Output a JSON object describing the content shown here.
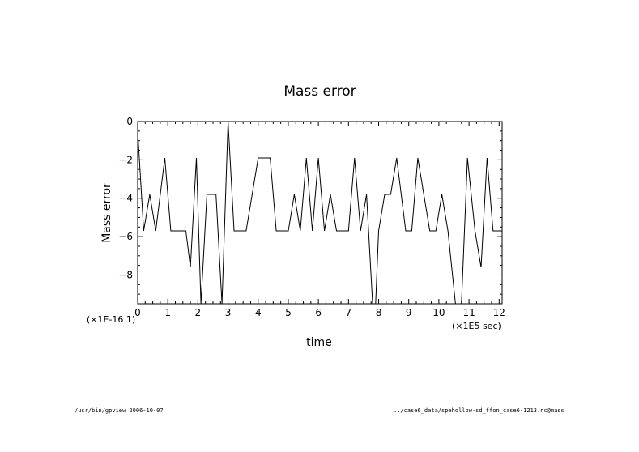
{
  "chart_data": {
    "type": "line",
    "title": "Mass error",
    "xlabel": "time",
    "ylabel": "Mass error",
    "x_scale_label": "(×1E5 sec)",
    "y_scale_label": "(×1E-16 1)",
    "xlim": [
      0,
      12.1
    ],
    "ylim": [
      -9.5,
      0
    ],
    "x_ticks": [
      0,
      1,
      2,
      3,
      4,
      5,
      6,
      7,
      8,
      9,
      10,
      11,
      12
    ],
    "x_tick_labels": [
      "0",
      "1",
      "2",
      "3",
      "4",
      "5",
      "6",
      "7",
      "8",
      "9",
      "10",
      "11",
      "12"
    ],
    "y_ticks": [
      0,
      -2,
      -4,
      -6,
      -8
    ],
    "y_tick_labels": [
      "0",
      "−2",
      "−4",
      "−6",
      "−8"
    ],
    "grid": false,
    "series": [
      {
        "x": [
          0,
          0.2,
          0.4,
          0.6,
          0.9,
          1.1,
          1.3,
          1.5,
          1.6,
          1.75,
          1.95,
          2.1,
          2.3,
          2.6,
          2.8,
          3.0,
          3.2,
          3.4,
          3.6,
          4.0,
          4.2,
          4.4,
          4.6,
          4.8,
          5.0,
          5.2,
          5.4,
          5.6,
          5.8,
          6.0,
          6.2,
          6.4,
          6.6,
          6.8,
          7.0,
          7.2,
          7.4,
          7.6,
          7.8,
          7.9,
          8.0,
          8.2,
          8.4,
          8.6,
          8.9,
          9.1,
          9.3,
          9.5,
          9.7,
          9.9,
          10.1,
          10.3,
          10.55,
          10.75,
          10.95,
          11.2,
          11.4,
          11.6,
          11.8,
          11.95,
          12.1
        ],
        "y": [
          -0.5,
          -5.7,
          -3.8,
          -5.7,
          -1.9,
          -5.7,
          -5.7,
          -5.7,
          -5.7,
          -7.6,
          -1.9,
          -9.5,
          -3.8,
          -3.8,
          -9.5,
          0,
          -5.7,
          -5.7,
          -5.7,
          -1.9,
          -1.9,
          -1.9,
          -5.7,
          -5.7,
          -5.7,
          -3.8,
          -5.7,
          -1.9,
          -5.7,
          -1.9,
          -5.7,
          -3.8,
          -5.7,
          -5.7,
          -5.7,
          -1.9,
          -5.7,
          -3.8,
          -9.5,
          -9.5,
          -5.7,
          -3.8,
          -3.8,
          -1.9,
          -5.7,
          -5.7,
          -1.9,
          -3.8,
          -5.7,
          -5.7,
          -3.8,
          -5.7,
          -9.5,
          -9.5,
          -1.9,
          -5.7,
          -7.6,
          -1.9,
          -5.7,
          -5.7,
          -5.7
        ]
      }
    ]
  },
  "footer": {
    "left": "/usr/bin/gpview 2006-10-07",
    "right": "../case6_data/spehollow-sd_ffon_case6-1213.nc@mass"
  }
}
